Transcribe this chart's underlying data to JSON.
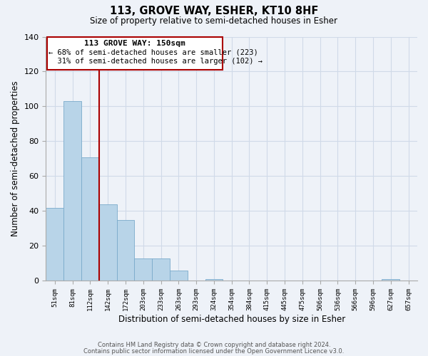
{
  "title": "113, GROVE WAY, ESHER, KT10 8HF",
  "subtitle": "Size of property relative to semi-detached houses in Esher",
  "xlabel": "Distribution of semi-detached houses by size in Esher",
  "ylabel": "Number of semi-detached properties",
  "bin_labels": [
    "51sqm",
    "81sqm",
    "112sqm",
    "142sqm",
    "172sqm",
    "203sqm",
    "233sqm",
    "263sqm",
    "293sqm",
    "324sqm",
    "354sqm",
    "384sqm",
    "415sqm",
    "445sqm",
    "475sqm",
    "506sqm",
    "536sqm",
    "566sqm",
    "596sqm",
    "627sqm",
    "657sqm"
  ],
  "bar_heights": [
    42,
    103,
    71,
    44,
    35,
    13,
    13,
    6,
    0,
    1,
    0,
    0,
    0,
    0,
    0,
    0,
    0,
    0,
    0,
    1,
    0
  ],
  "bar_color": "#b8d4e8",
  "bar_edge_color": "#7aaacb",
  "highlight_line_color": "#aa0000",
  "annotation_title": "113 GROVE WAY: 150sqm",
  "annotation_line1": "← 68% of semi-detached houses are smaller (223)",
  "annotation_line2": "  31% of semi-detached houses are larger (102) →",
  "ylim": [
    0,
    140
  ],
  "yticks": [
    0,
    20,
    40,
    60,
    80,
    100,
    120,
    140
  ],
  "footer1": "Contains HM Land Registry data © Crown copyright and database right 2024.",
  "footer2": "Contains public sector information licensed under the Open Government Licence v3.0.",
  "bg_color": "#eef2f8",
  "grid_color": "#d0dae8"
}
